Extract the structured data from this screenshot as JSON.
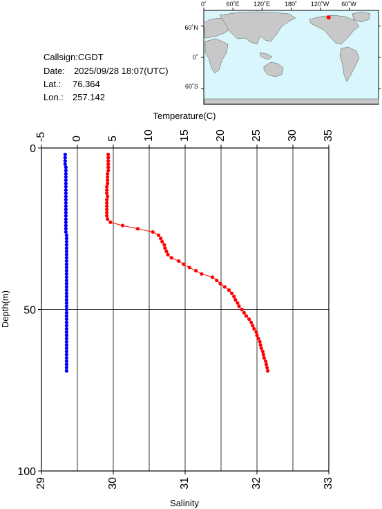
{
  "info": {
    "callsign": "Callsign:CGDT",
    "date_label": "Date:",
    "date_value": "2025/09/28 18:07(UTC)",
    "lat_label": "Lat.:",
    "lat_value": "76.364",
    "lon_label": "Lon.:",
    "lon_value": "257.142"
  },
  "map": {
    "top_labels": [
      "0˚",
      "60˚E",
      "120˚E",
      "180˚",
      "120˚W",
      "60˚W"
    ],
    "left_labels": [
      "60˚N",
      "0˚",
      "60˚S"
    ],
    "ocean_color": "#d8f6fb",
    "land_color": "#c8c8c8",
    "marker_color": "#ff0000",
    "marker_lat": 76.364,
    "marker_lon": 257.142
  },
  "chart_data": {
    "type": "scatter",
    "title": "",
    "y_axis": {
      "label": "Depth(m)",
      "range": [
        0,
        100
      ],
      "ticks": [
        0,
        50,
        100
      ],
      "inverted": true
    },
    "top_axis": {
      "label": "Temperature(C)",
      "range": [
        -5,
        35
      ],
      "ticks": [
        -5,
        0,
        5,
        10,
        15,
        20,
        25,
        30,
        35
      ]
    },
    "bottom_axis": {
      "label": "Salinity",
      "range": [
        29,
        33
      ],
      "ticks": [
        29,
        30,
        31,
        32,
        33
      ]
    },
    "grid": true,
    "series": [
      {
        "variable": "temperature",
        "axis": "top",
        "color": "#ff0000",
        "connected": true,
        "points": [
          [
            4.3,
            2
          ],
          [
            4.3,
            3
          ],
          [
            4.3,
            4
          ],
          [
            4.3,
            5
          ],
          [
            4.3,
            6
          ],
          [
            4.3,
            7
          ],
          [
            4.2,
            8
          ],
          [
            4.2,
            9
          ],
          [
            4.2,
            10
          ],
          [
            4.2,
            11
          ],
          [
            4.1,
            12
          ],
          [
            4.1,
            13
          ],
          [
            4.1,
            14
          ],
          [
            4.2,
            15
          ],
          [
            4.1,
            16
          ],
          [
            4.1,
            17
          ],
          [
            4.1,
            18
          ],
          [
            4.1,
            19
          ],
          [
            4.1,
            20
          ],
          [
            4.1,
            21
          ],
          [
            4.2,
            22
          ],
          [
            4.6,
            23
          ],
          [
            6.3,
            24
          ],
          [
            8.4,
            25
          ],
          [
            10.5,
            26
          ],
          [
            11.3,
            27
          ],
          [
            11.6,
            28
          ],
          [
            11.8,
            29
          ],
          [
            12.1,
            30
          ],
          [
            12.2,
            31
          ],
          [
            12.4,
            32
          ],
          [
            12.6,
            33
          ],
          [
            13.1,
            34
          ],
          [
            14.1,
            35
          ],
          [
            14.8,
            36
          ],
          [
            15.6,
            37
          ],
          [
            16.5,
            38
          ],
          [
            17.3,
            39
          ],
          [
            18.8,
            40
          ],
          [
            19.4,
            41
          ],
          [
            19.9,
            42
          ],
          [
            20.5,
            43
          ],
          [
            21.1,
            44
          ],
          [
            21.5,
            45
          ],
          [
            21.8,
            46
          ],
          [
            22.0,
            47
          ],
          [
            22.3,
            48
          ],
          [
            22.5,
            49
          ],
          [
            22.9,
            50
          ],
          [
            23.2,
            51
          ],
          [
            23.5,
            52
          ],
          [
            23.9,
            53
          ],
          [
            24.2,
            54
          ],
          [
            24.4,
            55
          ],
          [
            24.6,
            56
          ],
          [
            24.9,
            57
          ],
          [
            25.0,
            58
          ],
          [
            25.2,
            59
          ],
          [
            25.4,
            60
          ],
          [
            25.5,
            61
          ],
          [
            25.6,
            62
          ],
          [
            25.8,
            63
          ],
          [
            25.9,
            64
          ],
          [
            26.0,
            65
          ],
          [
            26.2,
            66
          ],
          [
            26.3,
            67
          ],
          [
            26.4,
            68
          ],
          [
            26.5,
            69
          ]
        ]
      },
      {
        "variable": "salinity",
        "axis": "bottom",
        "color": "#0000ff",
        "connected": true,
        "points": [
          [
            29.33,
            2
          ],
          [
            29.33,
            3
          ],
          [
            29.33,
            4
          ],
          [
            29.33,
            5
          ],
          [
            29.34,
            6
          ],
          [
            29.34,
            7
          ],
          [
            29.34,
            8
          ],
          [
            29.34,
            9
          ],
          [
            29.34,
            10
          ],
          [
            29.34,
            11
          ],
          [
            29.34,
            12
          ],
          [
            29.34,
            13
          ],
          [
            29.34,
            14
          ],
          [
            29.34,
            15
          ],
          [
            29.34,
            16
          ],
          [
            29.34,
            17
          ],
          [
            29.34,
            18
          ],
          [
            29.34,
            19
          ],
          [
            29.34,
            20
          ],
          [
            29.34,
            21
          ],
          [
            29.34,
            22
          ],
          [
            29.34,
            23
          ],
          [
            29.34,
            24
          ],
          [
            29.34,
            25
          ],
          [
            29.34,
            26
          ],
          [
            29.35,
            27
          ],
          [
            29.35,
            28
          ],
          [
            29.35,
            29
          ],
          [
            29.35,
            30
          ],
          [
            29.35,
            31
          ],
          [
            29.35,
            32
          ],
          [
            29.35,
            33
          ],
          [
            29.35,
            34
          ],
          [
            29.35,
            35
          ],
          [
            29.35,
            36
          ],
          [
            29.35,
            37
          ],
          [
            29.35,
            38
          ],
          [
            29.35,
            39
          ],
          [
            29.35,
            40
          ],
          [
            29.35,
            41
          ],
          [
            29.35,
            42
          ],
          [
            29.35,
            43
          ],
          [
            29.35,
            44
          ],
          [
            29.35,
            45
          ],
          [
            29.35,
            46
          ],
          [
            29.35,
            47
          ],
          [
            29.35,
            48
          ],
          [
            29.35,
            49
          ],
          [
            29.35,
            50
          ],
          [
            29.35,
            51
          ],
          [
            29.35,
            52
          ],
          [
            29.35,
            53
          ],
          [
            29.35,
            54
          ],
          [
            29.35,
            55
          ],
          [
            29.35,
            56
          ],
          [
            29.35,
            57
          ],
          [
            29.35,
            58
          ],
          [
            29.35,
            59
          ],
          [
            29.35,
            60
          ],
          [
            29.35,
            61
          ],
          [
            29.35,
            62
          ],
          [
            29.35,
            63
          ],
          [
            29.35,
            64
          ],
          [
            29.35,
            65
          ],
          [
            29.35,
            66
          ],
          [
            29.35,
            67
          ],
          [
            29.35,
            68
          ],
          [
            29.35,
            69
          ]
        ]
      }
    ]
  }
}
